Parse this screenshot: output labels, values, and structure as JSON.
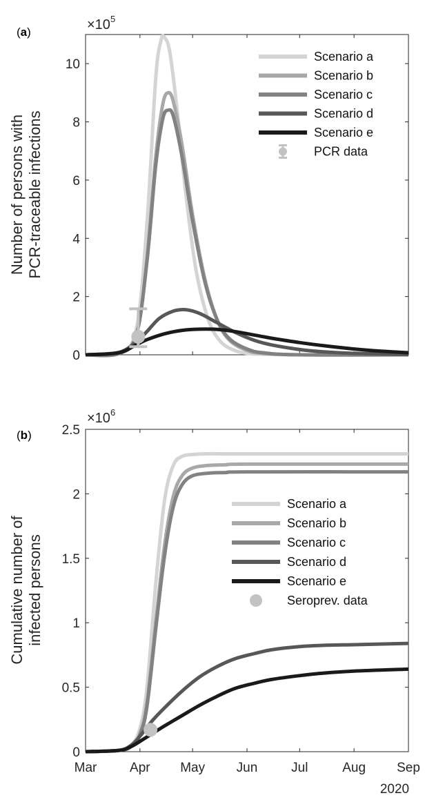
{
  "chart_data": [
    {
      "type": "line",
      "panel_label": "a",
      "ylabel_lines": [
        "Number of persons with",
        "PCR-traceable infections"
      ],
      "multiplier": {
        "base": "×10",
        "exp": "5"
      },
      "x_ticks": [
        "Mar",
        "Apr",
        "May",
        "Jun",
        "Jul",
        "Aug",
        "Sep"
      ],
      "x_year": "",
      "x_range": [
        "2020-03-01",
        "2020-09-01"
      ],
      "ylim": [
        0,
        11
      ],
      "y_ticks": [
        0,
        2,
        4,
        6,
        8,
        10
      ],
      "grid": false,
      "legend_position": "top-right",
      "series": [
        {
          "name": "Scenario a",
          "color": "#d4d4d4",
          "dates": [
            "2020-03-01",
            "2020-03-20",
            "2020-03-30",
            "2020-04-05",
            "2020-04-10",
            "2020-04-13",
            "2020-04-15",
            "2020-04-18",
            "2020-04-22",
            "2020-04-27",
            "2020-05-03",
            "2020-05-10",
            "2020-05-17",
            "2020-05-25",
            "2020-06-01",
            "2020-06-10",
            "2020-07-01",
            "2020-09-01"
          ],
          "values": [
            0,
            0.05,
            0.9,
            4.5,
            9.5,
            10.8,
            10.9,
            10.4,
            8.5,
            5.6,
            2.9,
            1.2,
            0.45,
            0.15,
            0.05,
            0.02,
            0,
            0
          ]
        },
        {
          "name": "Scenario b",
          "color": "#a8a8a8",
          "dates": [
            "2020-03-01",
            "2020-03-20",
            "2020-03-30",
            "2020-04-05",
            "2020-04-10",
            "2020-04-14",
            "2020-04-17",
            "2020-04-20",
            "2020-04-25",
            "2020-05-01",
            "2020-05-08",
            "2020-05-15",
            "2020-05-22",
            "2020-06-01",
            "2020-06-10",
            "2020-07-01",
            "2020-09-01"
          ],
          "values": [
            0,
            0.04,
            0.7,
            3.3,
            6.8,
            8.6,
            9.0,
            8.7,
            7.2,
            4.8,
            2.6,
            1.2,
            0.5,
            0.15,
            0.05,
            0,
            0
          ]
        },
        {
          "name": "Scenario c",
          "color": "#828282",
          "dates": [
            "2020-03-01",
            "2020-03-20",
            "2020-03-30",
            "2020-04-05",
            "2020-04-10",
            "2020-04-14",
            "2020-04-17",
            "2020-04-20",
            "2020-04-25",
            "2020-05-01",
            "2020-05-08",
            "2020-05-15",
            "2020-05-22",
            "2020-06-01",
            "2020-06-10",
            "2020-07-01",
            "2020-09-01"
          ],
          "values": [
            0,
            0.04,
            0.7,
            3.2,
            6.5,
            8.1,
            8.4,
            8.2,
            6.8,
            4.6,
            2.5,
            1.2,
            0.55,
            0.2,
            0.07,
            0,
            0
          ]
        },
        {
          "name": "Scenario d",
          "color": "#575757",
          "dates": [
            "2020-03-01",
            "2020-03-20",
            "2020-03-30",
            "2020-04-05",
            "2020-04-12",
            "2020-04-20",
            "2020-04-27",
            "2020-05-05",
            "2020-05-15",
            "2020-05-25",
            "2020-06-05",
            "2020-06-15",
            "2020-07-01",
            "2020-07-15",
            "2020-08-01",
            "2020-09-01"
          ],
          "values": [
            0,
            0.08,
            0.45,
            0.8,
            1.25,
            1.5,
            1.55,
            1.42,
            1.1,
            0.78,
            0.5,
            0.34,
            0.18,
            0.1,
            0.05,
            0.01
          ]
        },
        {
          "name": "Scenario e",
          "color": "#1a1a1a",
          "dates": [
            "2020-03-01",
            "2020-03-20",
            "2020-03-30",
            "2020-04-05",
            "2020-04-15",
            "2020-04-25",
            "2020-05-05",
            "2020-05-15",
            "2020-05-25",
            "2020-06-05",
            "2020-06-15",
            "2020-07-01",
            "2020-07-15",
            "2020-08-01",
            "2020-08-15",
            "2020-09-01"
          ],
          "values": [
            0,
            0.07,
            0.35,
            0.52,
            0.72,
            0.84,
            0.88,
            0.87,
            0.8,
            0.68,
            0.57,
            0.42,
            0.31,
            0.2,
            0.13,
            0.07
          ]
        }
      ],
      "data_points": {
        "name": "PCR data",
        "color": "#c2c2c2",
        "points": [
          {
            "date": "2020-03-31",
            "value": 0.62,
            "lower": 0.28,
            "upper": 1.58
          }
        ]
      }
    },
    {
      "type": "line",
      "panel_label": "b",
      "ylabel_lines": [
        "Cumulative number of",
        "infected persons"
      ],
      "multiplier": {
        "base": "×10",
        "exp": "6"
      },
      "x_ticks": [
        "Mar",
        "Apr",
        "May",
        "Jun",
        "Jul",
        "Aug",
        "Sep"
      ],
      "x_year": "2020",
      "x_range": [
        "2020-03-01",
        "2020-09-01"
      ],
      "ylim": [
        0,
        2.5
      ],
      "y_ticks": [
        0,
        0.5,
        1,
        1.5,
        2,
        2.5
      ],
      "grid": false,
      "legend_position": "right",
      "series": [
        {
          "name": "Scenario a",
          "color": "#d4d4d4",
          "dates": [
            "2020-03-01",
            "2020-03-20",
            "2020-03-27",
            "2020-04-01",
            "2020-04-05",
            "2020-04-10",
            "2020-04-15",
            "2020-04-20",
            "2020-04-25",
            "2020-05-01",
            "2020-05-10",
            "2020-05-20",
            "2020-06-01",
            "2020-09-01"
          ],
          "values": [
            0,
            0.01,
            0.05,
            0.18,
            0.5,
            1.3,
            1.95,
            2.22,
            2.29,
            2.305,
            2.31,
            2.31,
            2.31,
            2.31
          ]
        },
        {
          "name": "Scenario b",
          "color": "#a8a8a8",
          "dates": [
            "2020-03-01",
            "2020-03-20",
            "2020-03-27",
            "2020-04-01",
            "2020-04-05",
            "2020-04-10",
            "2020-04-15",
            "2020-04-20",
            "2020-04-25",
            "2020-05-01",
            "2020-05-10",
            "2020-05-20",
            "2020-06-01",
            "2020-09-01"
          ],
          "values": [
            0,
            0.01,
            0.04,
            0.14,
            0.38,
            1.0,
            1.6,
            1.98,
            2.14,
            2.2,
            2.22,
            2.225,
            2.23,
            2.23
          ]
        },
        {
          "name": "Scenario c",
          "color": "#828282",
          "dates": [
            "2020-03-01",
            "2020-03-20",
            "2020-03-27",
            "2020-04-01",
            "2020-04-05",
            "2020-04-10",
            "2020-04-15",
            "2020-04-20",
            "2020-04-25",
            "2020-05-01",
            "2020-05-10",
            "2020-05-20",
            "2020-06-01",
            "2020-09-01"
          ],
          "values": [
            0,
            0.01,
            0.04,
            0.13,
            0.35,
            0.95,
            1.52,
            1.9,
            2.07,
            2.14,
            2.16,
            2.165,
            2.17,
            2.17
          ]
        },
        {
          "name": "Scenario d",
          "color": "#575757",
          "dates": [
            "2020-03-01",
            "2020-03-20",
            "2020-03-27",
            "2020-04-01",
            "2020-04-08",
            "2020-04-15",
            "2020-04-25",
            "2020-05-05",
            "2020-05-15",
            "2020-05-25",
            "2020-06-05",
            "2020-06-15",
            "2020-07-01",
            "2020-07-15",
            "2020-08-01",
            "2020-09-01"
          ],
          "values": [
            0,
            0.01,
            0.05,
            0.12,
            0.24,
            0.34,
            0.47,
            0.58,
            0.66,
            0.72,
            0.76,
            0.79,
            0.815,
            0.825,
            0.83,
            0.84
          ]
        },
        {
          "name": "Scenario e",
          "color": "#1a1a1a",
          "dates": [
            "2020-03-01",
            "2020-03-20",
            "2020-03-27",
            "2020-04-01",
            "2020-04-08",
            "2020-04-15",
            "2020-04-25",
            "2020-05-05",
            "2020-05-15",
            "2020-05-25",
            "2020-06-05",
            "2020-06-15",
            "2020-07-01",
            "2020-07-15",
            "2020-08-01",
            "2020-09-01"
          ],
          "values": [
            0,
            0.01,
            0.04,
            0.08,
            0.14,
            0.2,
            0.28,
            0.36,
            0.43,
            0.49,
            0.53,
            0.56,
            0.59,
            0.61,
            0.625,
            0.64
          ]
        }
      ],
      "data_points": {
        "name": "Seroprev. data",
        "color": "#c2c2c2",
        "points": [
          {
            "date": "2020-04-07",
            "value": 0.17
          }
        ]
      }
    }
  ]
}
